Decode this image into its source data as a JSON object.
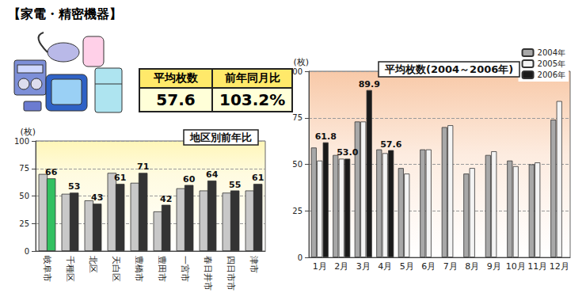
{
  "header": {
    "title": "【家電・精密機器】",
    "summary": {
      "headers": [
        "平均枚数",
        "前年同月比"
      ],
      "values": [
        "57.6",
        "103.2%"
      ]
    }
  },
  "chart_data": [
    {
      "type": "bar",
      "title": "地区別前年比",
      "y_label": "(枚)",
      "categories": [
        "岐阜市",
        "千種区",
        "北区",
        "天白区",
        "豊橋市",
        "豊田市",
        "一宮市",
        "春日井市",
        "四日市市",
        "津市"
      ],
      "series": [
        {
          "color": "#c8c8c8",
          "values": [
            70,
            52,
            46,
            71,
            62,
            36,
            57,
            55,
            53,
            55
          ]
        },
        {
          "color": "#333333",
          "colors": [
            "#33c060",
            "#333333",
            "#333333",
            "#333333",
            "#333333",
            "#333333",
            "#333333",
            "#333333",
            "#333333",
            "#333333"
          ],
          "values": [
            66,
            53,
            43,
            61,
            71,
            42,
            60,
            64,
            55,
            61
          ],
          "data_labels": true
        }
      ],
      "ylim": [
        0,
        100
      ],
      "yticks": [
        0,
        25,
        50,
        75,
        100
      ],
      "grid": true
    },
    {
      "type": "bar",
      "title": "平均枚数(2004～2006年)",
      "y_label": "(枚)",
      "categories": [
        "1月",
        "2月",
        "3月",
        "4月",
        "5月",
        "6月",
        "7月",
        "8月",
        "9月",
        "10月",
        "11月",
        "12月"
      ],
      "series": [
        {
          "name": "2004年",
          "color": "#a8a8a8",
          "values": [
            59,
            55,
            73,
            58,
            48,
            58,
            70,
            45,
            55,
            52,
            50,
            74
          ]
        },
        {
          "name": "2005年",
          "color": "#f4f4f4",
          "values": [
            52,
            53,
            73,
            56,
            45,
            58,
            71,
            48,
            57,
            49,
            51,
            84
          ]
        },
        {
          "name": "2006年",
          "color": "#1a1a1a",
          "values": [
            61.8,
            53,
            89.9,
            57.6,
            null,
            null,
            null,
            null,
            null,
            null,
            null,
            null
          ],
          "value_labels": [
            "61.8",
            "53.0",
            "89.9",
            "57.6",
            null,
            null,
            null,
            null,
            null,
            null,
            null,
            null
          ],
          "data_labels": true
        }
      ],
      "ylim": [
        0,
        100
      ],
      "yticks": [
        0,
        25,
        50,
        75,
        100
      ],
      "grid": true,
      "legend": "top-right"
    }
  ]
}
